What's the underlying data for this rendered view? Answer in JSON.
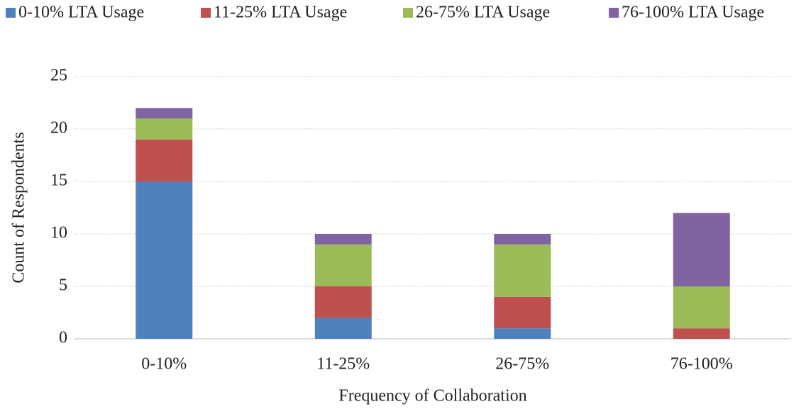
{
  "chart_data": {
    "type": "stacked_bar",
    "x_label": "Frequency of Collaboration",
    "y_label": "Count of Respondents",
    "categories": [
      "0-10%",
      "11-25%",
      "26-75%",
      "76-100%"
    ],
    "series": [
      {
        "name": "0-10% LTA Usage",
        "color": "#4f81bd",
        "values": [
          15,
          2,
          1,
          0
        ]
      },
      {
        "name": "11-25% LTA Usage",
        "color": "#c0504d",
        "values": [
          4,
          3,
          3,
          1
        ]
      },
      {
        "name": "26-75% LTA Usage",
        "color": "#9bbb59",
        "values": [
          2,
          4,
          5,
          4
        ]
      },
      {
        "name": "76-100% LTA Usage",
        "color": "#8064a2",
        "values": [
          1,
          1,
          1,
          7
        ]
      }
    ],
    "ylim": [
      0,
      25
    ],
    "yticks": [
      0,
      5,
      10,
      15,
      20,
      25
    ],
    "grid": true,
    "legend": "top"
  }
}
